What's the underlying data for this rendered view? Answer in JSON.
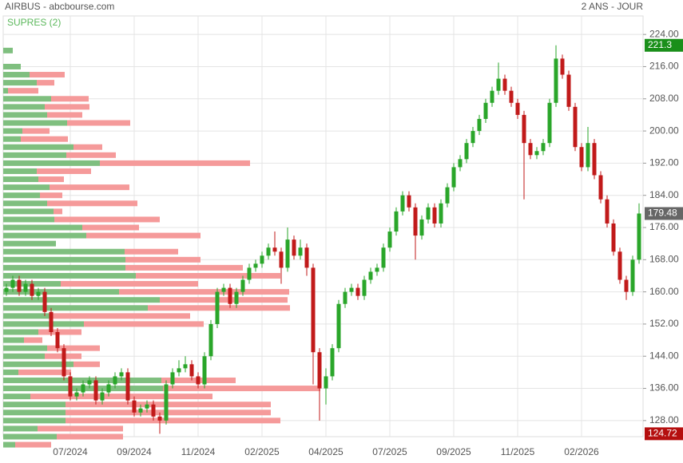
{
  "chart_data": {
    "type": "candlestick",
    "title": "AIRBUS - abcbourse.com",
    "period": "2 ANS - JOUR",
    "indicator": "SUPRES (2)",
    "categories": [
      null,
      null,
      null,
      null,
      null,
      null,
      null,
      null,
      null,
      null,
      "07/2024",
      null,
      null,
      null,
      null,
      null,
      null,
      null,
      null,
      null,
      "09/2024",
      null,
      null,
      null,
      null,
      null,
      null,
      null,
      null,
      null,
      "11/2024",
      null,
      null,
      null,
      null,
      null,
      null,
      null,
      null,
      null,
      "02/2025",
      null,
      null,
      null,
      null,
      null,
      null,
      null,
      null,
      null,
      "04/2025",
      null,
      null,
      null,
      null,
      null,
      null,
      null,
      null,
      null,
      "07/2025",
      null,
      null,
      null,
      null,
      null,
      null,
      null,
      null,
      null,
      "09/2025",
      null,
      null,
      null,
      null,
      null,
      null,
      null,
      null,
      null,
      "11/2025",
      null,
      null,
      null,
      null,
      null,
      null,
      null,
      null,
      null,
      "02/2026",
      null,
      null,
      null,
      null,
      null,
      null,
      null,
      null,
      null
    ],
    "open": [
      160,
      161,
      163,
      160,
      162,
      159,
      160,
      155,
      150,
      146,
      139,
      134,
      135,
      137,
      138,
      133,
      135,
      137,
      139,
      140,
      133,
      130,
      131,
      132,
      129,
      128,
      137,
      140,
      141,
      142,
      139,
      137,
      144,
      152,
      160,
      161,
      157,
      160,
      163,
      166,
      167,
      169,
      171,
      170,
      166,
      173,
      169,
      171,
      166,
      145,
      136,
      139,
      146,
      157,
      160,
      161,
      159,
      163,
      165,
      166,
      171,
      175,
      180,
      184,
      181,
      174,
      178,
      181,
      177,
      182,
      186,
      191,
      193,
      197,
      200,
      203,
      207,
      210,
      213,
      210,
      207,
      204,
      197,
      194,
      195,
      197,
      207,
      218,
      214,
      206,
      196,
      191,
      197,
      189,
      183,
      177,
      170,
      163,
      160,
      168
    ],
    "high": [
      162,
      164,
      164,
      163,
      163,
      161,
      161,
      156,
      151,
      147,
      140,
      136,
      138,
      139,
      139,
      136,
      138,
      140,
      141,
      141,
      134,
      132,
      133,
      133,
      130,
      138,
      141,
      143,
      144,
      143,
      140,
      145,
      153,
      161,
      162,
      162,
      161,
      164,
      167,
      168,
      170,
      172,
      175,
      171,
      176,
      174,
      173,
      172,
      167,
      146,
      141,
      147,
      158,
      161,
      162,
      162,
      164,
      166,
      167,
      172,
      176,
      181,
      185,
      185,
      182,
      179,
      182,
      182,
      183,
      187,
      192,
      194,
      198,
      201,
      204,
      208,
      211,
      217,
      214,
      211,
      208,
      205,
      198,
      196,
      198,
      208,
      221.3,
      219,
      215,
      207,
      197,
      201,
      198,
      190,
      184,
      178,
      171,
      164,
      169,
      182
    ],
    "low": [
      159,
      160,
      159,
      159,
      158,
      158,
      154,
      149,
      145,
      138,
      133,
      133,
      134,
      136,
      132,
      132,
      134,
      136,
      138,
      132,
      129,
      129,
      130,
      128,
      124.72,
      127,
      136,
      139,
      140,
      138,
      136,
      136,
      143,
      151,
      159,
      156,
      156,
      159,
      162,
      165,
      166,
      168,
      169,
      162,
      165,
      168,
      168,
      164,
      137,
      128,
      132,
      138,
      145,
      156,
      159,
      158,
      158,
      162,
      164,
      165,
      170,
      174,
      179,
      180,
      168,
      173,
      177,
      176,
      176,
      181,
      185,
      190,
      192,
      196,
      199,
      202,
      206,
      209,
      209,
      206,
      203,
      183,
      193,
      193,
      194,
      196,
      206,
      213,
      205,
      195,
      190,
      190,
      188,
      182,
      176,
      169,
      162,
      158,
      159,
      167
    ],
    "close": [
      161,
      163,
      160,
      162,
      159,
      160,
      155,
      150,
      146,
      139,
      134,
      135,
      137,
      138,
      133,
      135,
      137,
      139,
      140,
      133,
      130,
      131,
      132,
      129,
      128,
      137,
      140,
      141,
      142,
      139,
      137,
      144,
      152,
      160,
      161,
      157,
      160,
      163,
      166,
      167,
      169,
      171,
      170,
      166,
      173,
      169,
      171,
      166,
      145,
      136,
      139,
      146,
      157,
      160,
      161,
      159,
      163,
      165,
      166,
      171,
      175,
      180,
      184,
      181,
      174,
      178,
      181,
      177,
      182,
      186,
      191,
      193,
      197,
      200,
      203,
      207,
      210,
      213,
      210,
      207,
      204,
      197,
      194,
      195,
      197,
      207,
      218,
      214,
      206,
      196,
      191,
      197,
      189,
      183,
      177,
      170,
      163,
      160,
      168,
      179.48
    ],
    "up_color": "#2aa62a",
    "down_color": "#c11a1a",
    "ylim": [
      124,
      226
    ],
    "yticks": [
      {
        "value": 128,
        "label": "128.00"
      },
      {
        "value": 136,
        "label": "136.00"
      },
      {
        "value": 144,
        "label": "144.00"
      },
      {
        "value": 152,
        "label": "152.00"
      },
      {
        "value": 160,
        "label": "160.00"
      },
      {
        "value": 168,
        "label": "168.00"
      },
      {
        "value": 176,
        "label": "176.00"
      },
      {
        "value": 184,
        "label": "184.00"
      },
      {
        "value": 192,
        "label": "192.00"
      },
      {
        "value": 200,
        "label": "200.00"
      },
      {
        "value": 208,
        "label": "208.00"
      },
      {
        "value": 216,
        "label": "216.00"
      },
      {
        "value": 224,
        "label": "224.00"
      }
    ],
    "grid": true,
    "markers": [
      {
        "value": 221.3,
        "color": "#1a8f1a"
      },
      {
        "value": 179.48,
        "color": "#666666"
      },
      {
        "value": 124.72,
        "color": "#b50f0f"
      }
    ],
    "profile": {
      "up_color": "#7fbf7f",
      "down_color": "#f59a9a",
      "levels": [
        220,
        218,
        216,
        214,
        212,
        210,
        208,
        206,
        204,
        202,
        200,
        198,
        196,
        194,
        192,
        190,
        188,
        186,
        184,
        182,
        180,
        178,
        176,
        174,
        172,
        170,
        168,
        166,
        164,
        162,
        160,
        158,
        156,
        154,
        152,
        150,
        148,
        146,
        144,
        142,
        140,
        138,
        136,
        134,
        132,
        130,
        128,
        126,
        124,
        122
      ],
      "up": [
        12,
        0,
        22,
        33,
        42,
        6,
        60,
        52,
        55,
        80,
        24,
        22,
        88,
        79,
        121,
        42,
        44,
        58,
        46,
        55,
        63,
        64,
        99,
        104,
        66,
        152,
        153,
        153,
        166,
        72,
        145,
        196,
        181,
        62,
        101,
        44,
        26,
        55,
        52,
        88,
        19,
        198,
        200,
        34,
        78,
        78,
        78,
        43,
        67,
        15
      ],
      "down": [
        0,
        0,
        0,
        44,
        22,
        38,
        47,
        56,
        44,
        79,
        34,
        59,
        36,
        62,
        188,
        68,
        32,
        100,
        28,
        113,
        11,
        132,
        71,
        143,
        0,
        67,
        94,
        147,
        181,
        172,
        213,
        160,
        178,
        172,
        150,
        54,
        23,
        66,
        46,
        33,
        66,
        93,
        197,
        228,
        257,
        257,
        269,
        107,
        83,
        45
      ]
    }
  }
}
